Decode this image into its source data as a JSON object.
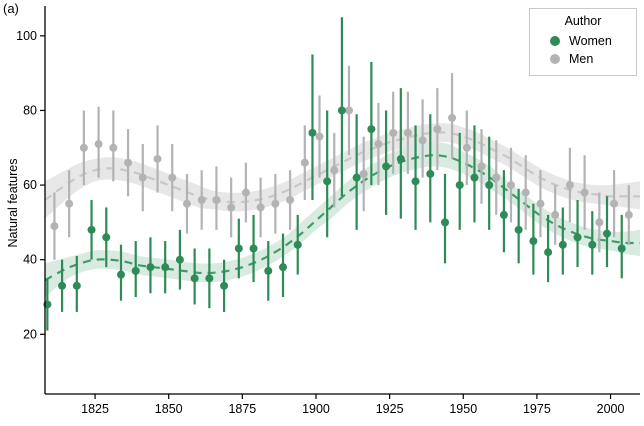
{
  "panel_label": "(a)",
  "axes": {
    "y_title": "Natural features",
    "x_ticks": [
      1825,
      1850,
      1875,
      1900,
      1925,
      1950,
      1975,
      2000
    ],
    "y_ticks": [
      20,
      40,
      60,
      80,
      100
    ],
    "xlim": [
      1808,
      2010
    ],
    "ylim": [
      4,
      108
    ]
  },
  "legend": {
    "title": "Author",
    "items": [
      {
        "label": "Women",
        "color": "#2e8b57"
      },
      {
        "label": "Men",
        "color": "#b3b3b3"
      }
    ]
  },
  "chart_data": {
    "type": "scatter",
    "subtype": "pointrange-with-loess-smooth",
    "title": "",
    "xlabel": "",
    "ylabel": "Natural features",
    "x_ticks": [
      1825,
      1850,
      1875,
      1900,
      1925,
      1950,
      1975,
      2000
    ],
    "y_ticks": [
      20,
      40,
      60,
      80,
      100
    ],
    "xlim": [
      1808,
      2010
    ],
    "ylim": [
      4,
      108
    ],
    "legend_title": "Author",
    "legend_position": "top-right",
    "grid": false,
    "series": [
      {
        "name": "Men",
        "dodge": 1.2,
        "point_color": "#b3b3b3",
        "line_color": "#c8c8c8",
        "band_color": "#a8a8a8",
        "band_opacity": 0.28,
        "points": [
          [
            1810,
            49,
            40,
            58
          ],
          [
            1815,
            55,
            46,
            64
          ],
          [
            1820,
            70,
            60,
            80
          ],
          [
            1825,
            71,
            62,
            81
          ],
          [
            1830,
            70,
            61,
            80
          ],
          [
            1835,
            66,
            57,
            75
          ],
          [
            1840,
            62,
            53,
            71
          ],
          [
            1845,
            67,
            58,
            76
          ],
          [
            1850,
            62,
            53,
            71
          ],
          [
            1855,
            55,
            47,
            63
          ],
          [
            1860,
            56,
            48,
            64
          ],
          [
            1865,
            56,
            48,
            65
          ],
          [
            1870,
            54,
            46,
            62
          ],
          [
            1875,
            58,
            50,
            66
          ],
          [
            1880,
            54,
            46,
            62
          ],
          [
            1885,
            55,
            47,
            63
          ],
          [
            1890,
            56,
            48,
            64
          ],
          [
            1895,
            66,
            56,
            76
          ],
          [
            1900,
            73,
            62,
            84
          ],
          [
            1905,
            64,
            54,
            74
          ],
          [
            1910,
            80,
            68,
            92
          ],
          [
            1915,
            63,
            53,
            73
          ],
          [
            1920,
            71,
            60,
            82
          ],
          [
            1925,
            74,
            63,
            85
          ],
          [
            1930,
            74,
            63,
            85
          ],
          [
            1935,
            72,
            62,
            83
          ],
          [
            1940,
            75,
            64,
            86
          ],
          [
            1945,
            78,
            67,
            90
          ],
          [
            1950,
            70,
            60,
            80
          ],
          [
            1955,
            65,
            55,
            75
          ],
          [
            1960,
            62,
            52,
            72
          ],
          [
            1965,
            60,
            50,
            70
          ],
          [
            1970,
            58,
            48,
            68
          ],
          [
            1975,
            55,
            46,
            64
          ],
          [
            1980,
            52,
            44,
            60
          ],
          [
            1985,
            60,
            50,
            70
          ],
          [
            1990,
            58,
            48,
            68
          ],
          [
            1995,
            50,
            42,
            58
          ],
          [
            2000,
            55,
            46,
            64
          ],
          [
            2005,
            52,
            44,
            60
          ]
        ],
        "smooth": [
          [
            1808,
            56,
            51,
            61
          ],
          [
            1815,
            60,
            56,
            64
          ],
          [
            1820,
            62.5,
            59,
            66
          ],
          [
            1825,
            64,
            61,
            67
          ],
          [
            1830,
            64.5,
            61.5,
            67.5
          ],
          [
            1835,
            64,
            61,
            67
          ],
          [
            1840,
            63,
            60,
            66
          ],
          [
            1845,
            61.5,
            58.5,
            64.5
          ],
          [
            1850,
            60,
            57,
            63
          ],
          [
            1855,
            58.5,
            55.5,
            61.5
          ],
          [
            1860,
            57,
            54,
            60
          ],
          [
            1865,
            56,
            53.5,
            58.5
          ],
          [
            1870,
            55.5,
            53,
            58
          ],
          [
            1875,
            55.5,
            53,
            58
          ],
          [
            1880,
            56,
            53.5,
            58.5
          ],
          [
            1885,
            57,
            54.5,
            59.5
          ],
          [
            1890,
            58.5,
            56,
            61
          ],
          [
            1895,
            60.5,
            58,
            63
          ],
          [
            1900,
            62.5,
            60,
            65
          ],
          [
            1905,
            64.5,
            62,
            67
          ],
          [
            1910,
            66.5,
            64,
            69
          ],
          [
            1915,
            68.5,
            66,
            71
          ],
          [
            1920,
            70,
            67.5,
            72.5
          ],
          [
            1925,
            71.5,
            69,
            74
          ],
          [
            1930,
            72.5,
            70,
            75
          ],
          [
            1935,
            73.5,
            71,
            76
          ],
          [
            1940,
            74,
            71.5,
            76.5
          ],
          [
            1945,
            74,
            71.5,
            76.5
          ],
          [
            1950,
            73,
            70.5,
            75.5
          ],
          [
            1955,
            71.5,
            69,
            74
          ],
          [
            1960,
            69.5,
            67,
            72
          ],
          [
            1965,
            67.5,
            65,
            70
          ],
          [
            1970,
            65,
            62.5,
            67.5
          ],
          [
            1975,
            62.5,
            60,
            65
          ],
          [
            1980,
            60.5,
            58,
            63
          ],
          [
            1985,
            59,
            56.5,
            61.5
          ],
          [
            1990,
            58,
            55.5,
            60.5
          ],
          [
            1995,
            57.5,
            55,
            60
          ],
          [
            2000,
            57,
            54.5,
            60
          ],
          [
            2005,
            57,
            54,
            60.5
          ],
          [
            2010,
            57,
            53.5,
            61
          ]
        ]
      },
      {
        "name": "Women",
        "dodge": -1.2,
        "point_color": "#2e8b57",
        "line_color": "#3f9c68",
        "band_color": "#2e8b57",
        "band_opacity": 0.18,
        "points": [
          [
            1810,
            28,
            21,
            35
          ],
          [
            1815,
            33,
            26,
            40
          ],
          [
            1820,
            33,
            26,
            41
          ],
          [
            1825,
            48,
            40,
            56
          ],
          [
            1830,
            46,
            38,
            54
          ],
          [
            1835,
            36,
            29,
            44
          ],
          [
            1840,
            37,
            30,
            45
          ],
          [
            1845,
            38,
            31,
            46
          ],
          [
            1850,
            38,
            31,
            45
          ],
          [
            1855,
            40,
            32,
            48
          ],
          [
            1860,
            35,
            28,
            43
          ],
          [
            1865,
            35,
            27,
            43
          ],
          [
            1870,
            33,
            26,
            40
          ],
          [
            1875,
            43,
            35,
            51
          ],
          [
            1880,
            43,
            34,
            52
          ],
          [
            1885,
            37,
            29,
            45
          ],
          [
            1890,
            38,
            30,
            47
          ],
          [
            1895,
            44,
            36,
            52
          ],
          [
            1900,
            74,
            56,
            95
          ],
          [
            1905,
            61,
            46,
            80
          ],
          [
            1910,
            80,
            57,
            105
          ],
          [
            1915,
            62,
            48,
            79
          ],
          [
            1920,
            75,
            60,
            93
          ],
          [
            1925,
            65,
            52,
            80
          ],
          [
            1930,
            67,
            51,
            86
          ],
          [
            1935,
            61,
            48,
            76
          ],
          [
            1940,
            63,
            50,
            79
          ],
          [
            1945,
            50,
            39,
            63
          ],
          [
            1950,
            60,
            48,
            74
          ],
          [
            1955,
            62,
            50,
            76
          ],
          [
            1960,
            60,
            48,
            73
          ],
          [
            1965,
            52,
            42,
            64
          ],
          [
            1970,
            48,
            39,
            59
          ],
          [
            1975,
            45,
            36,
            55
          ],
          [
            1980,
            42,
            34,
            52
          ],
          [
            1985,
            44,
            36,
            54
          ],
          [
            1990,
            46,
            38,
            56
          ],
          [
            1995,
            44,
            36,
            53
          ],
          [
            2000,
            47,
            38,
            57
          ],
          [
            2005,
            43,
            35,
            52
          ]
        ],
        "smooth": [
          [
            1808,
            34.5,
            30,
            39
          ],
          [
            1815,
            37.5,
            34.5,
            40.5
          ],
          [
            1820,
            39,
            36.5,
            41.5
          ],
          [
            1825,
            40,
            37.5,
            42.5
          ],
          [
            1830,
            40,
            37.5,
            42.5
          ],
          [
            1835,
            39.5,
            37,
            42
          ],
          [
            1840,
            38.5,
            36,
            41
          ],
          [
            1845,
            38,
            35.5,
            40.5
          ],
          [
            1850,
            37.5,
            35,
            40
          ],
          [
            1855,
            37,
            34.5,
            39.5
          ],
          [
            1860,
            36.5,
            34,
            39
          ],
          [
            1865,
            36.5,
            34,
            39
          ],
          [
            1870,
            37,
            34.5,
            39.5
          ],
          [
            1875,
            38,
            35.5,
            40.5
          ],
          [
            1880,
            39.5,
            37,
            42
          ],
          [
            1885,
            41.5,
            39,
            44
          ],
          [
            1890,
            44,
            41.5,
            46.5
          ],
          [
            1895,
            47,
            44.5,
            50
          ],
          [
            1900,
            50.5,
            48,
            53.5
          ],
          [
            1905,
            54,
            51,
            57
          ],
          [
            1910,
            57.5,
            54.5,
            60.5
          ],
          [
            1915,
            60.5,
            57.5,
            63.5
          ],
          [
            1920,
            63,
            60,
            66
          ],
          [
            1925,
            65,
            62,
            68.5
          ],
          [
            1930,
            66.5,
            63.5,
            70
          ],
          [
            1935,
            67.5,
            64.5,
            71
          ],
          [
            1940,
            68,
            65,
            71.5
          ],
          [
            1945,
            67.5,
            64.5,
            71
          ],
          [
            1950,
            66,
            63,
            69
          ],
          [
            1955,
            64,
            61,
            67
          ],
          [
            1960,
            61.5,
            58.5,
            64.5
          ],
          [
            1965,
            58.5,
            56,
            61
          ],
          [
            1970,
            55.5,
            53,
            58
          ],
          [
            1975,
            52.5,
            50,
            55
          ],
          [
            1980,
            50,
            47.5,
            52.5
          ],
          [
            1985,
            48,
            45.5,
            50.5
          ],
          [
            1990,
            46.5,
            44,
            49
          ],
          [
            1995,
            45.5,
            43,
            48
          ],
          [
            2000,
            45,
            42.5,
            47.5
          ],
          [
            2005,
            44.5,
            41.5,
            47.5
          ],
          [
            2010,
            44.5,
            41,
            48
          ]
        ]
      }
    ]
  }
}
